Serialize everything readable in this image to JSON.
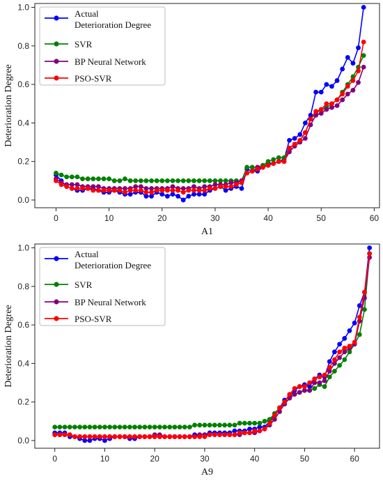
{
  "chart_data": [
    {
      "type": "line",
      "title": "",
      "xlabel": "A1",
      "ylabel": "Deterioration Degree",
      "xlim": [
        -4,
        61
      ],
      "ylim": [
        -0.04,
        1.02
      ],
      "xticks": [
        0,
        10,
        20,
        30,
        40,
        50,
        60
      ],
      "yticks": [
        0.0,
        0.2,
        0.4,
        0.6,
        0.8,
        1.0
      ],
      "grid": false,
      "legend_position": "top-left",
      "x_start": 0,
      "series": [
        {
          "name": "Actual Deterioration Degree",
          "name_lines": [
            "Actual",
            "Deterioration Degree"
          ],
          "color": "#0000ff",
          "values": [
            0.13,
            0.1,
            0.07,
            0.06,
            0.05,
            0.05,
            0.06,
            0.06,
            0.05,
            0.04,
            0.04,
            0.05,
            0.04,
            0.03,
            0.03,
            0.04,
            0.04,
            0.02,
            0.02,
            0.04,
            0.03,
            0.02,
            0.03,
            0.02,
            0.0,
            0.02,
            0.03,
            0.03,
            0.03,
            0.05,
            0.06,
            0.07,
            0.05,
            0.06,
            0.07,
            0.06,
            0.16,
            0.15,
            0.15,
            0.17,
            0.19,
            0.19,
            0.2,
            0.21,
            0.31,
            0.32,
            0.34,
            0.4,
            0.44,
            0.56,
            0.56,
            0.6,
            0.59,
            0.62,
            0.68,
            0.74,
            0.71,
            0.79,
            1.0
          ]
        },
        {
          "name": "SVR",
          "color": "#008000",
          "values": [
            0.14,
            0.13,
            0.12,
            0.12,
            0.12,
            0.11,
            0.11,
            0.11,
            0.11,
            0.11,
            0.11,
            0.1,
            0.1,
            0.11,
            0.1,
            0.1,
            0.1,
            0.1,
            0.1,
            0.1,
            0.1,
            0.1,
            0.1,
            0.1,
            0.1,
            0.1,
            0.1,
            0.1,
            0.1,
            0.1,
            0.1,
            0.1,
            0.1,
            0.1,
            0.1,
            0.1,
            0.17,
            0.17,
            0.17,
            0.18,
            0.2,
            0.21,
            0.22,
            0.22,
            0.27,
            0.29,
            0.31,
            0.35,
            0.42,
            0.45,
            0.47,
            0.48,
            0.5,
            0.52,
            0.56,
            0.6,
            0.64,
            0.69,
            0.75
          ]
        },
        {
          "name": "BP Neural Network",
          "color": "#800080",
          "values": [
            0.11,
            0.09,
            0.08,
            0.08,
            0.08,
            0.07,
            0.07,
            0.07,
            0.07,
            0.06,
            0.06,
            0.06,
            0.06,
            0.06,
            0.06,
            0.07,
            0.07,
            0.06,
            0.06,
            0.06,
            0.06,
            0.06,
            0.07,
            0.06,
            0.06,
            0.06,
            0.07,
            0.06,
            0.07,
            0.07,
            0.08,
            0.08,
            0.08,
            0.09,
            0.09,
            0.1,
            0.14,
            0.15,
            0.17,
            0.17,
            0.18,
            0.19,
            0.2,
            0.2,
            0.25,
            0.28,
            0.3,
            0.32,
            0.39,
            0.44,
            0.45,
            0.47,
            0.48,
            0.49,
            0.52,
            0.55,
            0.57,
            0.61,
            0.69
          ]
        },
        {
          "name": "PSO-SVR",
          "color": "#ff0000",
          "values": [
            0.1,
            0.08,
            0.07,
            0.06,
            0.06,
            0.06,
            0.06,
            0.05,
            0.05,
            0.05,
            0.05,
            0.05,
            0.05,
            0.04,
            0.05,
            0.05,
            0.05,
            0.04,
            0.04,
            0.05,
            0.05,
            0.05,
            0.05,
            0.05,
            0.04,
            0.05,
            0.05,
            0.05,
            0.05,
            0.06,
            0.06,
            0.07,
            0.07,
            0.07,
            0.08,
            0.09,
            0.14,
            0.15,
            0.16,
            0.17,
            0.18,
            0.19,
            0.2,
            0.2,
            0.27,
            0.29,
            0.31,
            0.35,
            0.42,
            0.46,
            0.47,
            0.5,
            0.5,
            0.52,
            0.55,
            0.59,
            0.62,
            0.67,
            0.82
          ]
        }
      ]
    },
    {
      "type": "line",
      "title": "",
      "xlabel": "A9",
      "ylabel": "Deterioration Degree",
      "xlim": [
        -4,
        65
      ],
      "ylim": [
        -0.04,
        1.02
      ],
      "xticks": [
        0,
        10,
        20,
        30,
        40,
        50,
        60
      ],
      "yticks": [
        0.0,
        0.2,
        0.4,
        0.6,
        0.8,
        1.0
      ],
      "grid": false,
      "legend_position": "top-left",
      "x_start": 0,
      "series": [
        {
          "name": "Actual Deterioration Degree",
          "name_lines": [
            "Actual",
            "Deterioration Degree"
          ],
          "color": "#0000ff",
          "values": [
            0.04,
            0.04,
            0.04,
            0.02,
            0.02,
            0.01,
            0.0,
            0.0,
            0.01,
            0.01,
            0.0,
            0.01,
            0.02,
            0.02,
            0.02,
            0.01,
            0.01,
            0.02,
            0.02,
            0.02,
            0.02,
            0.02,
            0.02,
            0.02,
            0.02,
            0.02,
            0.02,
            0.02,
            0.03,
            0.03,
            0.03,
            0.04,
            0.04,
            0.04,
            0.04,
            0.04,
            0.05,
            0.05,
            0.05,
            0.06,
            0.06,
            0.07,
            0.07,
            0.1,
            0.14,
            0.17,
            0.21,
            0.23,
            0.26,
            0.28,
            0.29,
            0.28,
            0.32,
            0.34,
            0.33,
            0.41,
            0.46,
            0.5,
            0.53,
            0.57,
            0.61,
            0.7,
            0.77,
            1.0
          ]
        },
        {
          "name": "SVR",
          "color": "#008000",
          "values": [
            0.07,
            0.07,
            0.07,
            0.07,
            0.07,
            0.07,
            0.07,
            0.07,
            0.07,
            0.07,
            0.07,
            0.07,
            0.07,
            0.07,
            0.07,
            0.07,
            0.07,
            0.07,
            0.07,
            0.07,
            0.07,
            0.07,
            0.07,
            0.07,
            0.07,
            0.07,
            0.07,
            0.07,
            0.08,
            0.08,
            0.08,
            0.08,
            0.08,
            0.08,
            0.08,
            0.08,
            0.08,
            0.09,
            0.09,
            0.09,
            0.09,
            0.09,
            0.1,
            0.11,
            0.14,
            0.17,
            0.19,
            0.22,
            0.24,
            0.25,
            0.26,
            0.26,
            0.27,
            0.29,
            0.28,
            0.33,
            0.36,
            0.39,
            0.42,
            0.46,
            0.5,
            0.55,
            0.68,
            0.97
          ]
        },
        {
          "name": "BP Neural Network",
          "color": "#800080",
          "values": [
            0.03,
            0.03,
            0.03,
            0.03,
            0.02,
            0.02,
            0.02,
            0.02,
            0.02,
            0.02,
            0.02,
            0.02,
            0.02,
            0.02,
            0.02,
            0.02,
            0.02,
            0.02,
            0.02,
            0.02,
            0.03,
            0.03,
            0.02,
            0.02,
            0.02,
            0.02,
            0.02,
            0.02,
            0.02,
            0.03,
            0.03,
            0.03,
            0.03,
            0.03,
            0.03,
            0.03,
            0.03,
            0.03,
            0.04,
            0.04,
            0.04,
            0.05,
            0.06,
            0.08,
            0.11,
            0.15,
            0.19,
            0.22,
            0.24,
            0.25,
            0.26,
            0.26,
            0.3,
            0.3,
            0.31,
            0.36,
            0.4,
            0.43,
            0.46,
            0.48,
            0.5,
            0.62,
            0.74,
            0.95
          ]
        },
        {
          "name": "PSO-SVR",
          "color": "#ff0000",
          "values": [
            0.03,
            0.03,
            0.03,
            0.03,
            0.02,
            0.02,
            0.02,
            0.02,
            0.02,
            0.02,
            0.02,
            0.02,
            0.02,
            0.02,
            0.02,
            0.02,
            0.02,
            0.02,
            0.02,
            0.02,
            0.02,
            0.02,
            0.02,
            0.02,
            0.02,
            0.02,
            0.02,
            0.02,
            0.02,
            0.02,
            0.02,
            0.03,
            0.03,
            0.03,
            0.03,
            0.03,
            0.03,
            0.04,
            0.04,
            0.04,
            0.05,
            0.05,
            0.06,
            0.09,
            0.13,
            0.17,
            0.2,
            0.24,
            0.27,
            0.28,
            0.28,
            0.3,
            0.32,
            0.33,
            0.34,
            0.38,
            0.42,
            0.46,
            0.48,
            0.49,
            0.51,
            0.64,
            0.77,
            0.97
          ]
        }
      ]
    }
  ]
}
